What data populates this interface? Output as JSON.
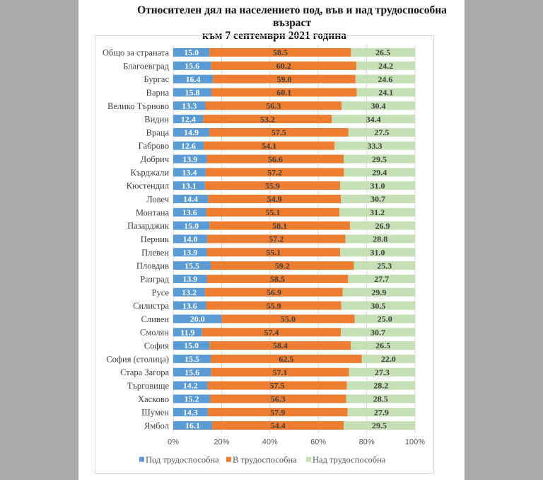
{
  "chart_data": {
    "type": "bar",
    "orientation": "horizontal",
    "stacked": "percent",
    "title": "Относителен дял на населението под, във и над трудоспособна възраст към 7 септември 2021 година",
    "title_lines": [
      "Относителен дял на населението под, във и над трудоспособна възраст",
      "към 7 септември 2021 година"
    ],
    "xlabel": "",
    "ylabel": "",
    "xlim": [
      0,
      100
    ],
    "x_ticks": [
      "0%",
      "20%",
      "40%",
      "60%",
      "80%",
      "100%"
    ],
    "grid": "vertical",
    "legend_position": "bottom",
    "categories": [
      "Общо за страната",
      "Благоевград",
      "Бургас",
      "Варна",
      "Велико Търново",
      "Видин",
      "Враца",
      "Габрово",
      "Добрич",
      "Кърджали",
      "Кюстендил",
      "Ловеч",
      "Монтана",
      "Пазарджик",
      "Перник",
      "Плевен",
      "Пловдив",
      "Разград",
      "Русе",
      "Силистра",
      "Сливен",
      "Смолян",
      "София",
      "София (столица)",
      "Стара Загора",
      "Търговище",
      "Хасково",
      "Шумен",
      "Ямбол"
    ],
    "series": [
      {
        "name": "Под трудоспособна",
        "color": "#5b9bd5",
        "label_color": "#ffffff",
        "values": [
          15.0,
          15.6,
          16.4,
          15.8,
          13.3,
          12.4,
          14.9,
          12.6,
          13.9,
          13.4,
          13.1,
          14.4,
          13.6,
          15.0,
          14.0,
          13.9,
          15.5,
          13.9,
          13.2,
          13.6,
          20.0,
          11.9,
          15.0,
          15.5,
          15.6,
          14.2,
          15.2,
          14.3,
          16.1
        ]
      },
      {
        "name": "В трудоспособна",
        "color": "#ed7d31",
        "label_color": "#404040",
        "values": [
          58.5,
          60.2,
          59.0,
          60.1,
          56.3,
          53.2,
          57.5,
          54.1,
          56.6,
          57.2,
          55.9,
          54.9,
          55.1,
          58.1,
          57.2,
          55.1,
          59.2,
          58.5,
          56.9,
          55.9,
          55.0,
          57.4,
          58.4,
          62.5,
          57.1,
          57.5,
          56.3,
          57.9,
          54.4
        ]
      },
      {
        "name": "Над трудоспособна",
        "color": "#c5e0b4",
        "label_color": "#404040",
        "values": [
          26.5,
          24.2,
          24.6,
          24.1,
          30.4,
          34.4,
          27.5,
          33.3,
          29.5,
          29.4,
          31.0,
          30.7,
          31.2,
          26.9,
          28.8,
          31.0,
          25.3,
          27.7,
          29.9,
          30.5,
          25.0,
          30.7,
          26.5,
          22.0,
          27.3,
          28.2,
          28.5,
          27.9,
          29.5
        ]
      }
    ]
  }
}
